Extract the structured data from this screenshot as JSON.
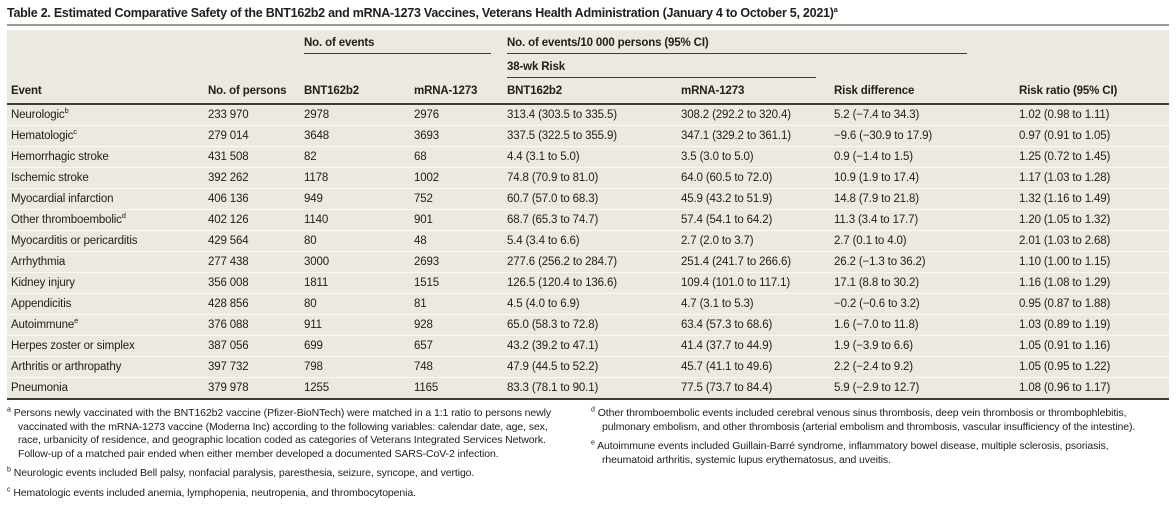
{
  "title": {
    "text": "Table 2. Estimated Comparative Safety of the BNT162b2 and mRNA-1273 Vaccines, Veterans Health Administration (January 4 to October 5, 2021)",
    "footnote_marker": "a"
  },
  "table": {
    "group_headers": {
      "no_of_events": "No. of events",
      "rate": "No. of events/10 000 persons (95% CI)",
      "risk_38wk": "38-wk Risk"
    },
    "column_headers": [
      "Event",
      "No. of persons",
      "BNT162b2",
      "mRNA-1273",
      "BNT162b2",
      "mRNA-1273",
      "Risk difference",
      "Risk ratio (95% CI)"
    ],
    "rows": [
      {
        "event": "Neurologic",
        "marker": "b",
        "persons": "233 970",
        "events_bnt": "2978",
        "events_mrna": "2976",
        "risk_bnt": "313.4 (303.5 to 335.5)",
        "risk_mrna": "308.2 (292.2 to 320.4)",
        "risk_diff": "5.2 (−7.4 to 34.3)",
        "risk_ratio": "1.02 (0.98 to 1.11)"
      },
      {
        "event": "Hematologic",
        "marker": "c",
        "persons": "279 014",
        "events_bnt": "3648",
        "events_mrna": "3693",
        "risk_bnt": "337.5 (322.5 to 355.9)",
        "risk_mrna": "347.1 (329.2 to 361.1)",
        "risk_diff": "−9.6 (−30.9 to 17.9)",
        "risk_ratio": "0.97 (0.91 to 1.05)"
      },
      {
        "event": "Hemorrhagic stroke",
        "marker": "",
        "persons": "431 508",
        "events_bnt": "82",
        "events_mrna": "68",
        "risk_bnt": "4.4 (3.1 to 5.0)",
        "risk_mrna": "3.5 (3.0 to 5.0)",
        "risk_diff": "0.9 (−1.4 to 1.5)",
        "risk_ratio": "1.25 (0.72 to 1.45)"
      },
      {
        "event": "Ischemic stroke",
        "marker": "",
        "persons": "392 262",
        "events_bnt": "1178",
        "events_mrna": "1002",
        "risk_bnt": "74.8 (70.9 to 81.0)",
        "risk_mrna": "64.0 (60.5 to 72.0)",
        "risk_diff": "10.9 (1.9 to 17.4)",
        "risk_ratio": "1.17 (1.03 to 1.28)"
      },
      {
        "event": "Myocardial infarction",
        "marker": "",
        "persons": "406 136",
        "events_bnt": "949",
        "events_mrna": "752",
        "risk_bnt": "60.7 (57.0 to 68.3)",
        "risk_mrna": "45.9 (43.2 to 51.9)",
        "risk_diff": "14.8 (7.9 to 21.8)",
        "risk_ratio": "1.32 (1.16 to 1.49)"
      },
      {
        "event": "Other thromboembolic",
        "marker": "d",
        "persons": "402 126",
        "events_bnt": "1140",
        "events_mrna": "901",
        "risk_bnt": "68.7 (65.3 to 74.7)",
        "risk_mrna": "57.4 (54.1 to 64.2)",
        "risk_diff": "11.3 (3.4 to 17.7)",
        "risk_ratio": "1.20 (1.05 to 1.32)"
      },
      {
        "event": "Myocarditis or pericarditis",
        "marker": "",
        "persons": "429 564",
        "events_bnt": "80",
        "events_mrna": "48",
        "risk_bnt": "5.4 (3.4 to 6.6)",
        "risk_mrna": "2.7 (2.0 to 3.7)",
        "risk_diff": "2.7 (0.1 to 4.0)",
        "risk_ratio": "2.01 (1.03 to 2.68)"
      },
      {
        "event": "Arrhythmia",
        "marker": "",
        "persons": "277 438",
        "events_bnt": "3000",
        "events_mrna": "2693",
        "risk_bnt": "277.6 (256.2 to 284.7)",
        "risk_mrna": "251.4 (241.7 to 266.6)",
        "risk_diff": "26.2 (−1.3 to 36.2)",
        "risk_ratio": "1.10 (1.00 to 1.15)"
      },
      {
        "event": "Kidney injury",
        "marker": "",
        "persons": "356 008",
        "events_bnt": "1811",
        "events_mrna": "1515",
        "risk_bnt": "126.5 (120.4 to 136.6)",
        "risk_mrna": "109.4 (101.0 to 117.1)",
        "risk_diff": "17.1 (8.8 to 30.2)",
        "risk_ratio": "1.16 (1.08 to 1.29)"
      },
      {
        "event": "Appendicitis",
        "marker": "",
        "persons": "428 856",
        "events_bnt": "80",
        "events_mrna": "81",
        "risk_bnt": "4.5 (4.0 to 6.9)",
        "risk_mrna": "4.7 (3.1 to 5.3)",
        "risk_diff": "−0.2 (−0.6 to 3.2)",
        "risk_ratio": "0.95 (0.87 to 1.88)"
      },
      {
        "event": "Autoimmune",
        "marker": "e",
        "persons": "376 088",
        "events_bnt": "911",
        "events_mrna": "928",
        "risk_bnt": "65.0 (58.3 to 72.8)",
        "risk_mrna": "63.4 (57.3 to 68.6)",
        "risk_diff": "1.6 (−7.0 to 11.8)",
        "risk_ratio": "1.03 (0.89 to 1.19)"
      },
      {
        "event": "Herpes zoster or simplex",
        "marker": "",
        "persons": "387 056",
        "events_bnt": "699",
        "events_mrna": "657",
        "risk_bnt": "43.2 (39.2 to 47.1)",
        "risk_mrna": "41.4 (37.7 to 44.9)",
        "risk_diff": "1.9 (−3.9 to 6.6)",
        "risk_ratio": "1.05 (0.91 to 1.16)"
      },
      {
        "event": "Arthritis or arthropathy",
        "marker": "",
        "persons": "397 732",
        "events_bnt": "798",
        "events_mrna": "748",
        "risk_bnt": "47.9 (44.5 to 52.2)",
        "risk_mrna": "45.7 (41.1 to 49.6)",
        "risk_diff": "2.2 (−2.4 to 9.2)",
        "risk_ratio": "1.05 (0.95 to 1.22)"
      },
      {
        "event": "Pneumonia",
        "marker": "",
        "persons": "379 978",
        "events_bnt": "1255",
        "events_mrna": "1165",
        "risk_bnt": "83.3 (78.1 to 90.1)",
        "risk_mrna": "77.5 (73.7 to 84.4)",
        "risk_diff": "5.9 (−2.9 to 12.7)",
        "risk_ratio": "1.08 (0.96 to 1.17)"
      }
    ]
  },
  "footnotes": {
    "left": [
      {
        "marker": "a",
        "text": "Persons newly vaccinated with the BNT162b2 vaccine (Pfizer-BioNTech) were matched in a 1:1 ratio to persons newly vaccinated with the mRNA-1273 vaccine (Moderna Inc) according to the following variables: calendar date, age, sex, race, urbanicity of residence, and geographic location coded as categories of Veterans Integrated Services Network. Follow-up of a matched pair ended when either member developed a documented SARS-CoV-2 infection."
      },
      {
        "marker": "b",
        "text": "Neurologic events included Bell palsy, nonfacial paralysis, paresthesia, seizure, syncope, and vertigo."
      },
      {
        "marker": "c",
        "text": "Hematologic events included anemia, lymphopenia, neutropenia, and thrombocytopenia."
      }
    ],
    "right": [
      {
        "marker": "d",
        "text": "Other thromboembolic events included cerebral venous sinus thrombosis, deep vein thrombosis or thrombophlebitis, pulmonary embolism, and other thrombosis (arterial embolism and thrombosis, vascular insufficiency of the intestine)."
      },
      {
        "marker": "e",
        "text": "Autoimmune events included Guillain-Barré syndrome, inflammatory bowel disease, multiple sclerosis, psoriasis, rheumatoid arthritis, systemic lupus erythematosus, and uveitis."
      }
    ]
  },
  "colors": {
    "table_background": "#ece9e1",
    "dark_rule": "#3e3c37",
    "title_rule": "#9c9a92",
    "row_divider": "#fbfaf6",
    "text": "#232019"
  }
}
